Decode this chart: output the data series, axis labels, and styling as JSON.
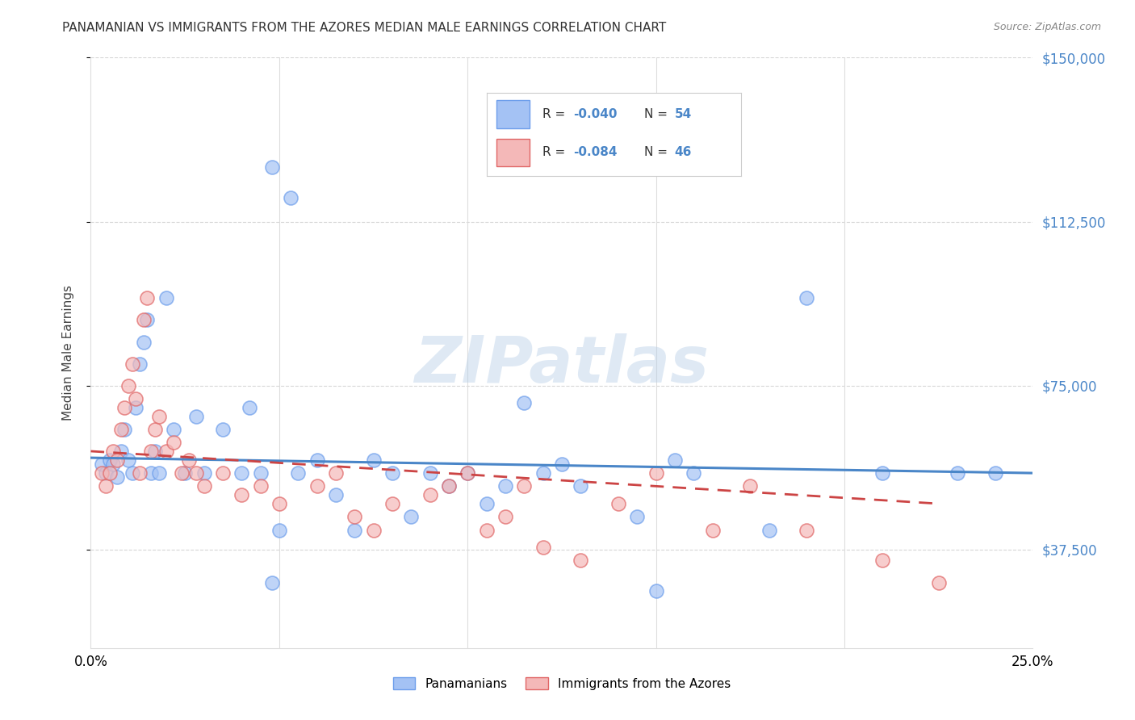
{
  "title": "PANAMANIAN VS IMMIGRANTS FROM THE AZORES MEDIAN MALE EARNINGS CORRELATION CHART",
  "source": "Source: ZipAtlas.com",
  "ylabel": "Median Male Earnings",
  "xlim": [
    0.0,
    0.25
  ],
  "ylim": [
    15000,
    150000
  ],
  "yticks": [
    37500,
    75000,
    112500,
    150000
  ],
  "ytick_labels": [
    "$37,500",
    "$75,000",
    "$112,500",
    "$150,000"
  ],
  "legend_r_blue": "-0.040",
  "legend_n_blue": "54",
  "legend_r_pink": "-0.084",
  "legend_n_pink": "46",
  "legend_label_blue": "Panamanians",
  "legend_label_pink": "Immigrants from the Azores",
  "watermark": "ZIPatlas",
  "blue_color": "#a4c2f4",
  "pink_color": "#f4b8b8",
  "blue_edge": "#6d9eeb",
  "pink_edge": "#e06666",
  "blue_line": "#4a86c8",
  "pink_line": "#cc4444",
  "accent_color": "#4a86c8",
  "blue_x": [
    0.003,
    0.004,
    0.005,
    0.006,
    0.007,
    0.008,
    0.009,
    0.01,
    0.011,
    0.012,
    0.013,
    0.014,
    0.015,
    0.016,
    0.017,
    0.018,
    0.02,
    0.022,
    0.025,
    0.028,
    0.03,
    0.035,
    0.04,
    0.042,
    0.045,
    0.048,
    0.05,
    0.053,
    0.055,
    0.06,
    0.065,
    0.07,
    0.075,
    0.08,
    0.085,
    0.09,
    0.095,
    0.1,
    0.105,
    0.11,
    0.115,
    0.12,
    0.125,
    0.13,
    0.145,
    0.155,
    0.16,
    0.18,
    0.19,
    0.21,
    0.23,
    0.24,
    0.048,
    0.15
  ],
  "blue_y": [
    57000,
    55000,
    58000,
    57000,
    54000,
    60000,
    65000,
    58000,
    55000,
    70000,
    80000,
    85000,
    90000,
    55000,
    60000,
    55000,
    95000,
    65000,
    55000,
    68000,
    55000,
    65000,
    55000,
    70000,
    55000,
    125000,
    42000,
    118000,
    55000,
    58000,
    50000,
    42000,
    58000,
    55000,
    45000,
    55000,
    52000,
    55000,
    48000,
    52000,
    71000,
    55000,
    57000,
    52000,
    45000,
    58000,
    55000,
    42000,
    95000,
    55000,
    55000,
    55000,
    30000,
    28000
  ],
  "pink_x": [
    0.003,
    0.004,
    0.005,
    0.006,
    0.007,
    0.008,
    0.009,
    0.01,
    0.011,
    0.012,
    0.013,
    0.014,
    0.015,
    0.016,
    0.017,
    0.018,
    0.02,
    0.022,
    0.024,
    0.026,
    0.028,
    0.03,
    0.035,
    0.04,
    0.045,
    0.05,
    0.06,
    0.065,
    0.07,
    0.075,
    0.08,
    0.09,
    0.095,
    0.1,
    0.105,
    0.11,
    0.115,
    0.12,
    0.13,
    0.14,
    0.15,
    0.165,
    0.175,
    0.19,
    0.21,
    0.225
  ],
  "pink_y": [
    55000,
    52000,
    55000,
    60000,
    58000,
    65000,
    70000,
    75000,
    80000,
    72000,
    55000,
    90000,
    95000,
    60000,
    65000,
    68000,
    60000,
    62000,
    55000,
    58000,
    55000,
    52000,
    55000,
    50000,
    52000,
    48000,
    52000,
    55000,
    45000,
    42000,
    48000,
    50000,
    52000,
    55000,
    42000,
    45000,
    52000,
    38000,
    35000,
    48000,
    55000,
    42000,
    52000,
    42000,
    35000,
    30000
  ],
  "blue_trend_x": [
    0.0,
    0.25
  ],
  "blue_trend_y": [
    58500,
    55000
  ],
  "pink_trend_x": [
    0.0,
    0.225
  ],
  "pink_trend_y": [
    60000,
    48000
  ]
}
